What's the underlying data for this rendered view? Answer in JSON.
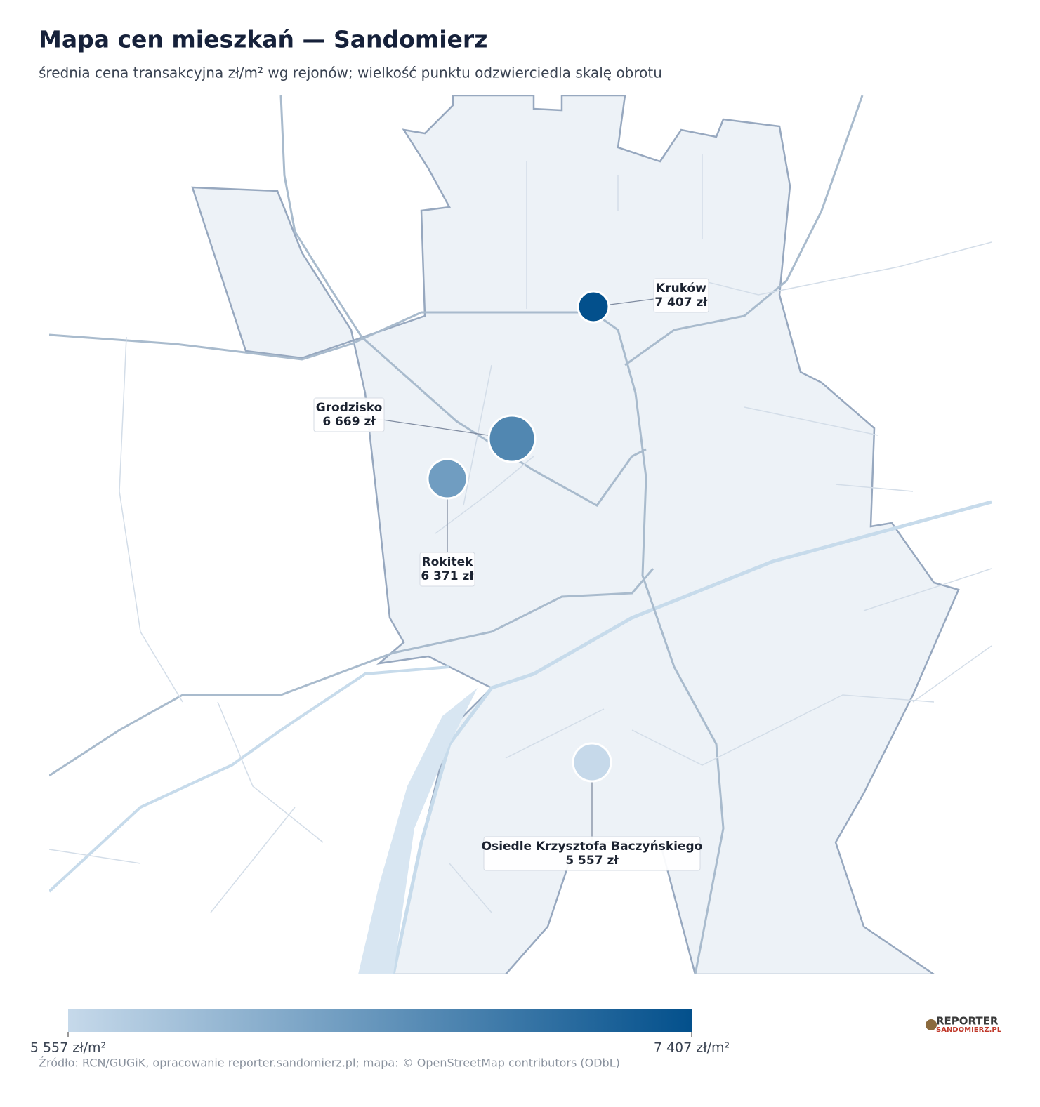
{
  "title": "Mapa cen mieszkań — Sandomierz",
  "subtitle": "średnia cena transakcyjna zł/m² wg rejonów; wielkość punktu odzwierciedla skalę obrotu",
  "points": [
    {
      "name": "Kruków",
      "value": 7407,
      "value_label": "7 407 zł"
    },
    {
      "name": "Grodzisko",
      "value": 6669,
      "value_label": "6 669 zł"
    },
    {
      "name": "Rokitek",
      "value": 6371,
      "value_label": "6 371 zł"
    },
    {
      "name": "Osiedle Krzysztofa Baczyńskiego",
      "value": 5557,
      "value_label": "5 557 zł"
    }
  ],
  "colorbar": {
    "min": 5557,
    "max": 7407,
    "min_label": "5 557 zł/m²",
    "max_label": "7 407 zł/m²",
    "colors": [
      "#c6d9ea",
      "#03508c"
    ]
  },
  "source": "Źródło: RCN/GUGiK, opracowanie reporter.sandomierz.pl; mapa: © OpenStreetMap contributors (ODbL)",
  "logo": {
    "line1": "REPORTER",
    "line2": "SANDOMIERZ.PL"
  }
}
